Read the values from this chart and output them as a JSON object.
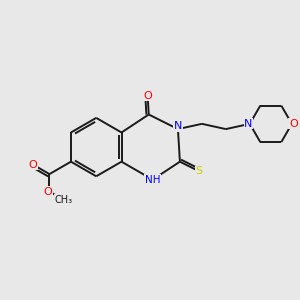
{
  "bg_color": "#e8e8e8",
  "bond_color": "#1a1a1a",
  "n_color": "#0000ff",
  "o_color": "#ff0000",
  "s_color": "#cccc00",
  "lw": 1.4,
  "figsize": [
    3.0,
    3.0
  ],
  "dpi": 100,
  "xlim": [
    0,
    10
  ],
  "ylim": [
    0,
    10
  ]
}
